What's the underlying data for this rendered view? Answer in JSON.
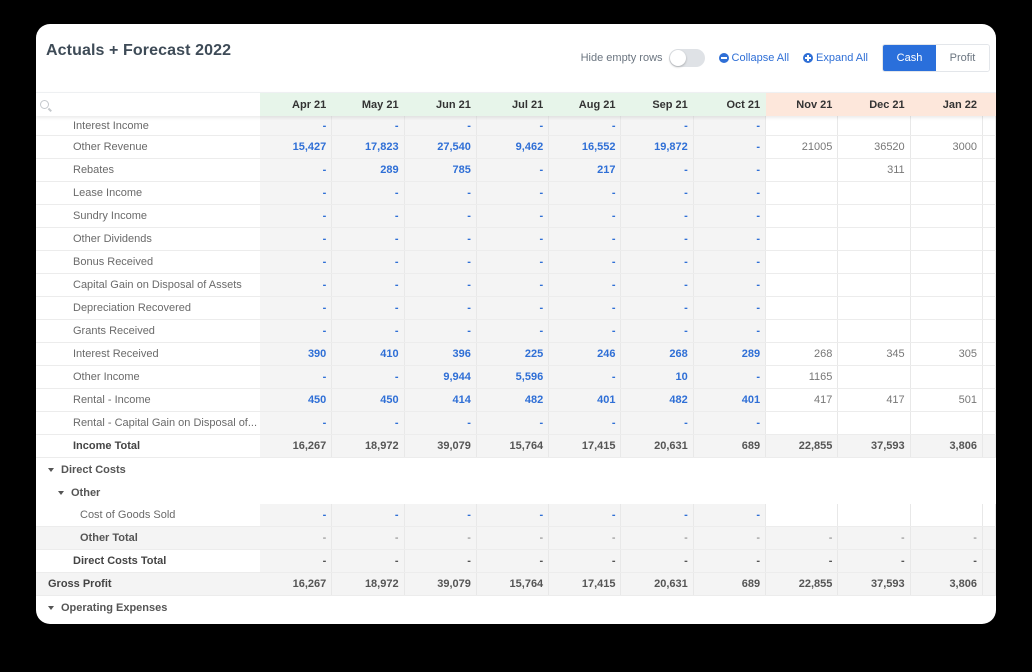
{
  "header": {
    "title": "Actuals + Forecast 2022",
    "hide_empty_rows_label": "Hide empty rows",
    "hide_empty_rows_on": false,
    "collapse_all_label": "Collapse All",
    "expand_all_label": "Expand All",
    "view_options": [
      "Cash",
      "Profit"
    ],
    "view_selected": "Cash"
  },
  "colors": {
    "accent": "#2a6fdb",
    "actual_header_bg": "#e7f5ea",
    "forecast_header_bg": "#fde7db",
    "actual_value": "#2f6fd6"
  },
  "search": {
    "placeholder": ""
  },
  "columns": [
    {
      "label": "Apr 21",
      "type": "actual"
    },
    {
      "label": "May 21",
      "type": "actual"
    },
    {
      "label": "Jun 21",
      "type": "actual"
    },
    {
      "label": "Jul 21",
      "type": "actual"
    },
    {
      "label": "Aug 21",
      "type": "actual"
    },
    {
      "label": "Sep 21",
      "type": "actual"
    },
    {
      "label": "Oct 21",
      "type": "actual"
    },
    {
      "label": "Nov 21",
      "type": "forecast"
    },
    {
      "label": "Dec 21",
      "type": "forecast"
    },
    {
      "label": "Jan 22",
      "type": "forecast"
    }
  ],
  "rows": [
    {
      "label": "Interest Income",
      "kind": "item",
      "actual": [
        "-",
        "-",
        "-",
        "-",
        "-",
        "-",
        "-"
      ],
      "forecast": [
        "",
        "",
        ""
      ]
    },
    {
      "label": "Other Revenue",
      "kind": "item",
      "actual": [
        "15,427",
        "17,823",
        "27,540",
        "9,462",
        "16,552",
        "19,872",
        "-"
      ],
      "forecast": [
        "21005",
        "36520",
        "3000"
      ]
    },
    {
      "label": "Rebates",
      "kind": "item",
      "actual": [
        "-",
        "289",
        "785",
        "-",
        "217",
        "-",
        "-"
      ],
      "forecast": [
        "",
        "311",
        ""
      ]
    },
    {
      "label": "Lease Income",
      "kind": "item",
      "actual": [
        "-",
        "-",
        "-",
        "-",
        "-",
        "-",
        "-"
      ],
      "forecast": [
        "",
        "",
        ""
      ]
    },
    {
      "label": "Sundry Income",
      "kind": "item",
      "actual": [
        "-",
        "-",
        "-",
        "-",
        "-",
        "-",
        "-"
      ],
      "forecast": [
        "",
        "",
        ""
      ]
    },
    {
      "label": "Other Dividends",
      "kind": "item",
      "actual": [
        "-",
        "-",
        "-",
        "-",
        "-",
        "-",
        "-"
      ],
      "forecast": [
        "",
        "",
        ""
      ]
    },
    {
      "label": "Bonus Received",
      "kind": "item",
      "actual": [
        "-",
        "-",
        "-",
        "-",
        "-",
        "-",
        "-"
      ],
      "forecast": [
        "",
        "",
        ""
      ]
    },
    {
      "label": "Capital Gain on Disposal of Assets",
      "kind": "item",
      "actual": [
        "-",
        "-",
        "-",
        "-",
        "-",
        "-",
        "-"
      ],
      "forecast": [
        "",
        "",
        ""
      ]
    },
    {
      "label": "Depreciation Recovered",
      "kind": "item",
      "actual": [
        "-",
        "-",
        "-",
        "-",
        "-",
        "-",
        "-"
      ],
      "forecast": [
        "",
        "",
        ""
      ]
    },
    {
      "label": "Grants Received",
      "kind": "item",
      "actual": [
        "-",
        "-",
        "-",
        "-",
        "-",
        "-",
        "-"
      ],
      "forecast": [
        "",
        "",
        ""
      ]
    },
    {
      "label": "Interest Received",
      "kind": "item",
      "actual": [
        "390",
        "410",
        "396",
        "225",
        "246",
        "268",
        "289"
      ],
      "forecast": [
        "268",
        "345",
        "305"
      ]
    },
    {
      "label": "Other Income",
      "kind": "item",
      "actual": [
        "-",
        "-",
        "9,944",
        "5,596",
        "-",
        "10",
        "-"
      ],
      "forecast": [
        "1165",
        "",
        ""
      ]
    },
    {
      "label": "Rental - Income",
      "kind": "item",
      "actual": [
        "450",
        "450",
        "414",
        "482",
        "401",
        "482",
        "401"
      ],
      "forecast": [
        "417",
        "417",
        "501"
      ]
    },
    {
      "label": "Rental - Capital Gain on Disposal of...",
      "kind": "item",
      "actual": [
        "-",
        "-",
        "-",
        "-",
        "-",
        "-",
        "-"
      ],
      "forecast": [
        "",
        "",
        ""
      ]
    },
    {
      "label": "Income Total",
      "kind": "total",
      "values": [
        "16,267",
        "18,972",
        "39,079",
        "15,764",
        "17,415",
        "20,631",
        "689",
        "22,855",
        "37,593",
        "3,806"
      ]
    },
    {
      "label": "Direct Costs",
      "kind": "section0"
    },
    {
      "label": "Other",
      "kind": "section1"
    },
    {
      "label": "Cost of Goods Sold",
      "kind": "item2",
      "actual": [
        "-",
        "-",
        "-",
        "-",
        "-",
        "-",
        "-"
      ],
      "forecast": [
        "",
        "",
        ""
      ]
    },
    {
      "label": "Other Total",
      "kind": "subtotal",
      "values": [
        "-",
        "-",
        "-",
        "-",
        "-",
        "-",
        "-",
        "-",
        "-",
        "-"
      ]
    },
    {
      "label": "Direct Costs Total",
      "kind": "total",
      "values": [
        "-",
        "-",
        "-",
        "-",
        "-",
        "-",
        "-",
        "-",
        "-",
        "-"
      ]
    },
    {
      "label": "Gross Profit",
      "kind": "gross",
      "values": [
        "16,267",
        "18,972",
        "39,079",
        "15,764",
        "17,415",
        "20,631",
        "689",
        "22,855",
        "37,593",
        "3,806"
      ]
    },
    {
      "label": "Operating Expenses",
      "kind": "section0"
    }
  ]
}
